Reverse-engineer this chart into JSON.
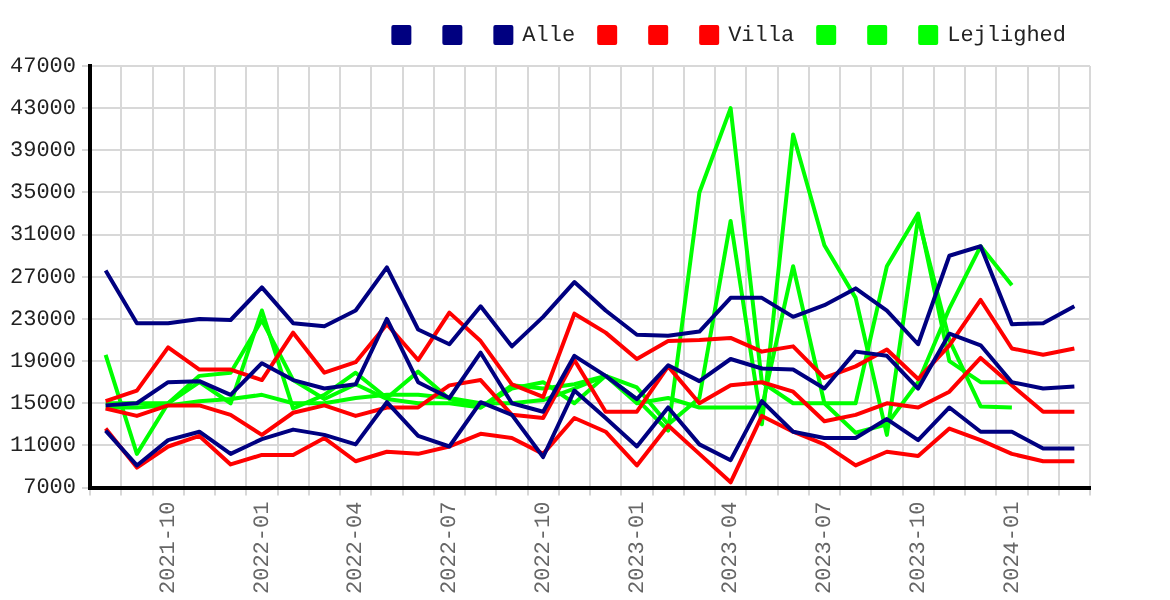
{
  "chart_data": {
    "type": "line",
    "categories": [
      null,
      null,
      "2021-10",
      null,
      null,
      "2022-01",
      null,
      null,
      "2022-04",
      null,
      null,
      "2022-07",
      null,
      null,
      "2022-10",
      null,
      null,
      "2023-01",
      null,
      null,
      "2023-04",
      null,
      null,
      "2023-07",
      null,
      null,
      "2023-10",
      null,
      null,
      "2024-01",
      null,
      null
    ],
    "series": [
      {
        "color": "#000080",
        "values": [
          27600,
          22600,
          22600,
          23000,
          22900,
          26000,
          22600,
          22300,
          23800,
          27900,
          22000,
          20600,
          24200,
          20400,
          23200,
          26500,
          23800,
          21500,
          21400,
          21800,
          25000,
          25000,
          23200,
          24300,
          25900,
          23800,
          20600,
          29000,
          29900,
          22500,
          22600,
          24200
        ]
      },
      {
        "color": "#000080",
        "values": [
          14800,
          15000,
          17000,
          17100,
          15800,
          18800,
          17200,
          16400,
          16800,
          23000,
          17000,
          15500,
          19800,
          15000,
          14200,
          19500,
          17600,
          15400,
          18600,
          17100,
          19200,
          18300,
          18200,
          16400,
          19900,
          19500,
          16400,
          21600,
          20500,
          17000,
          16400,
          16600
        ]
      },
      {
        "name": "Alle",
        "color": "#000080",
        "values": [
          12400,
          9100,
          11500,
          12300,
          10200,
          11600,
          12500,
          12000,
          11100,
          15100,
          11900,
          10900,
          15100,
          13900,
          9900,
          16200,
          13600,
          10900,
          14600,
          11100,
          9600,
          15200,
          12300,
          11700,
          11700,
          13500,
          11500,
          14600,
          12300,
          12300,
          10700,
          10700
        ]
      },
      {
        "color": "#ff0000",
        "values": [
          15200,
          16200,
          20300,
          18200,
          18200,
          17200,
          21700,
          17900,
          18900,
          22500,
          19100,
          23600,
          20900,
          16800,
          15600,
          23500,
          21700,
          19200,
          20900,
          21000,
          21200,
          19900,
          20400,
          17400,
          18500,
          20100,
          17300,
          20500,
          24800,
          20200,
          19600,
          20200
        ]
      },
      {
        "color": "#ff0000",
        "values": [
          14500,
          13800,
          14800,
          14800,
          13900,
          12000,
          14100,
          14800,
          13800,
          14600,
          14600,
          16700,
          17200,
          13900,
          13600,
          19100,
          14200,
          14200,
          18500,
          15000,
          16700,
          17000,
          16100,
          13300,
          13900,
          15000,
          14600,
          16100,
          19300,
          16700,
          14200,
          14200
        ]
      },
      {
        "name": "Villa",
        "color": "#ff0000",
        "values": [
          12600,
          8900,
          10900,
          11900,
          9200,
          10100,
          10100,
          11700,
          9500,
          10400,
          10200,
          10900,
          12100,
          11700,
          10200,
          13600,
          12300,
          9100,
          12900,
          10200,
          7500,
          13800,
          12300,
          11100,
          9100,
          10400,
          10000,
          12600,
          11500,
          10200,
          9500,
          9500
        ]
      },
      {
        "color": "#00ff00",
        "values": [
          19600,
          10200,
          15000,
          17000,
          15000,
          23800,
          14500,
          15800,
          17900,
          15500,
          18000,
          15400,
          14600,
          16400,
          17000,
          15000,
          17600,
          15400,
          12400,
          35000,
          43000,
          17000,
          15000,
          15000,
          12200,
          13000,
          17000,
          24000,
          29900,
          26200,
          null,
          null
        ]
      },
      {
        "color": "#00ff00",
        "values": [
          15000,
          15000,
          15000,
          17600,
          17900,
          22900,
          17200,
          15400,
          16800,
          15400,
          15000,
          15000,
          14600,
          16700,
          16400,
          16800,
          17600,
          16500,
          13000,
          15500,
          32300,
          13000,
          40500,
          30000,
          25000,
          12000,
          32600,
          21000,
          14700,
          14600,
          null,
          null
        ]
      },
      {
        "name": "Lejlighed",
        "color": "#00ff00",
        "values": [
          14600,
          14600,
          14800,
          15200,
          15400,
          15800,
          15000,
          15000,
          15500,
          15800,
          15800,
          15500,
          15000,
          15000,
          15300,
          16400,
          17600,
          15000,
          15500,
          14600,
          14600,
          14600,
          28000,
          15000,
          15000,
          28000,
          33000,
          19000,
          17000,
          17000,
          null,
          null
        ]
      }
    ],
    "ylim": [
      7000,
      47000
    ],
    "yticks": [
      7000,
      11000,
      15000,
      19000,
      23000,
      27000,
      31000,
      35000,
      39000,
      43000,
      47000
    ],
    "grid": true,
    "legend": "top right"
  }
}
